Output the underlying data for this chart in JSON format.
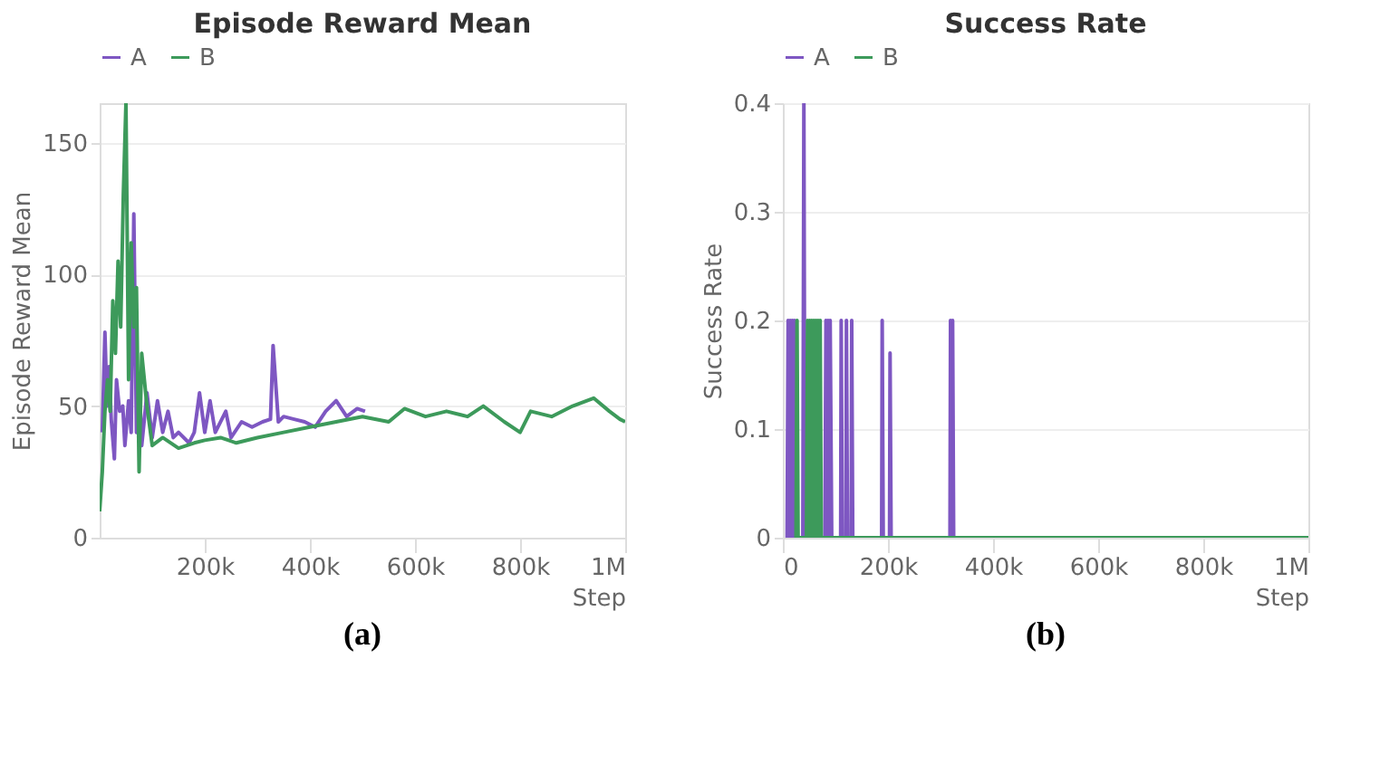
{
  "chart_data": [
    {
      "type": "line",
      "title": "Episode Reward Mean",
      "xlabel": "Step",
      "ylabel": "Episode Reward Mean",
      "legend": "top",
      "grid": "y",
      "xlim": [
        0,
        1000000
      ],
      "ylim": [
        0,
        165
      ],
      "xticks": [
        {
          "value": 200000,
          "label": "200k"
        },
        {
          "value": 400000,
          "label": "400k"
        },
        {
          "value": 600000,
          "label": "600k"
        },
        {
          "value": 800000,
          "label": "800k"
        },
        {
          "value": 1000000,
          "label": "1M"
        }
      ],
      "yticks": [
        0,
        50,
        100,
        150
      ],
      "annotations": [
        "(a)"
      ],
      "series": [
        {
          "name": "A",
          "color": "#7e57c2",
          "x": [
            5000,
            10000,
            14000,
            18000,
            22000,
            28000,
            32000,
            38000,
            44000,
            48000,
            55000,
            60000,
            65000,
            70000,
            75000,
            80000,
            90000,
            100000,
            110000,
            120000,
            130000,
            140000,
            150000,
            170000,
            180000,
            190000,
            200000,
            210000,
            220000,
            240000,
            250000,
            270000,
            290000,
            310000,
            325000,
            330000,
            340000,
            350000,
            370000,
            390000,
            410000,
            430000,
            450000,
            470000,
            490000,
            505000
          ],
          "values": [
            40,
            78,
            50,
            65,
            45,
            30,
            60,
            48,
            50,
            35,
            52,
            40,
            123,
            40,
            62,
            35,
            55,
            38,
            52,
            40,
            48,
            38,
            40,
            36,
            40,
            55,
            40,
            52,
            40,
            48,
            38,
            44,
            42,
            44,
            45,
            73,
            44,
            46,
            45,
            44,
            42,
            48,
            52,
            46,
            49,
            48
          ]
        },
        {
          "name": "B",
          "color": "#3d9a5b",
          "x": [
            0,
            5000,
            10000,
            15000,
            20000,
            25000,
            30000,
            35000,
            40000,
            45000,
            50000,
            55000,
            60000,
            65000,
            70000,
            75000,
            80000,
            90000,
            100000,
            120000,
            150000,
            180000,
            200000,
            230000,
            260000,
            300000,
            350000,
            400000,
            450000,
            500000,
            550000,
            580000,
            620000,
            660000,
            700000,
            730000,
            770000,
            800000,
            820000,
            860000,
            900000,
            940000,
            970000,
            990000,
            1000000
          ],
          "values": [
            10,
            25,
            48,
            60,
            48,
            90,
            70,
            105,
            80,
            130,
            165,
            60,
            112,
            80,
            95,
            25,
            70,
            50,
            35,
            38,
            34,
            36,
            37,
            38,
            36,
            38,
            40,
            42,
            44,
            46,
            44,
            49,
            46,
            48,
            46,
            50,
            44,
            40,
            48,
            46,
            50,
            53,
            48,
            45,
            44
          ]
        }
      ]
    },
    {
      "type": "line",
      "title": "Success Rate",
      "xlabel": "Step",
      "ylabel": "Success Rate",
      "legend": "top",
      "grid": "y",
      "xlim": [
        0,
        1000000
      ],
      "ylim": [
        0,
        0.4
      ],
      "xticks": [
        0,
        {
          "value": 200000,
          "label": "200k"
        },
        {
          "value": 400000,
          "label": "400k"
        },
        {
          "value": 600000,
          "label": "600k"
        },
        {
          "value": 800000,
          "label": "800k"
        },
        {
          "value": 1000000,
          "label": "1M"
        }
      ],
      "yticks": [
        0,
        0.1,
        0.2,
        0.3,
        0.4
      ],
      "annotations": [
        "(b)"
      ],
      "series": [
        {
          "name": "A",
          "color": "#7e57c2",
          "x": [
            8000,
            10000,
            12000,
            14000,
            16000,
            18000,
            20000,
            22000,
            25000,
            38000,
            40000,
            42000,
            80000,
            82000,
            84000,
            86000,
            88000,
            90000,
            93000,
            110000,
            111000,
            113000,
            120000,
            121000,
            123000,
            130000,
            131000,
            133000,
            188000,
            189000,
            191000,
            203000,
            204000,
            206000,
            318000,
            319000,
            321000,
            323000,
            325000,
            500000
          ],
          "values": [
            0,
            0.2,
            0,
            0.2,
            0,
            0.2,
            0,
            0.2,
            0,
            0,
            0.4,
            0,
            0,
            0.2,
            0,
            0.2,
            0,
            0.2,
            0,
            0,
            0.2,
            0,
            0,
            0.2,
            0,
            0,
            0.2,
            0,
            0,
            0.2,
            0,
            0,
            0.17,
            0,
            0,
            0.2,
            0,
            0.2,
            0,
            0
          ]
        },
        {
          "name": "B",
          "color": "#3d9a5b",
          "x": [
            25000,
            27000,
            29000,
            45000,
            47000,
            49000,
            51000,
            53000,
            55000,
            57000,
            59000,
            61000,
            63000,
            65000,
            67000,
            69000,
            71000,
            73000,
            1000000
          ],
          "values": [
            0,
            0.2,
            0,
            0,
            0.2,
            0,
            0.2,
            0,
            0.2,
            0,
            0.2,
            0,
            0.2,
            0,
            0.2,
            0,
            0.2,
            0,
            0
          ]
        }
      ]
    }
  ]
}
